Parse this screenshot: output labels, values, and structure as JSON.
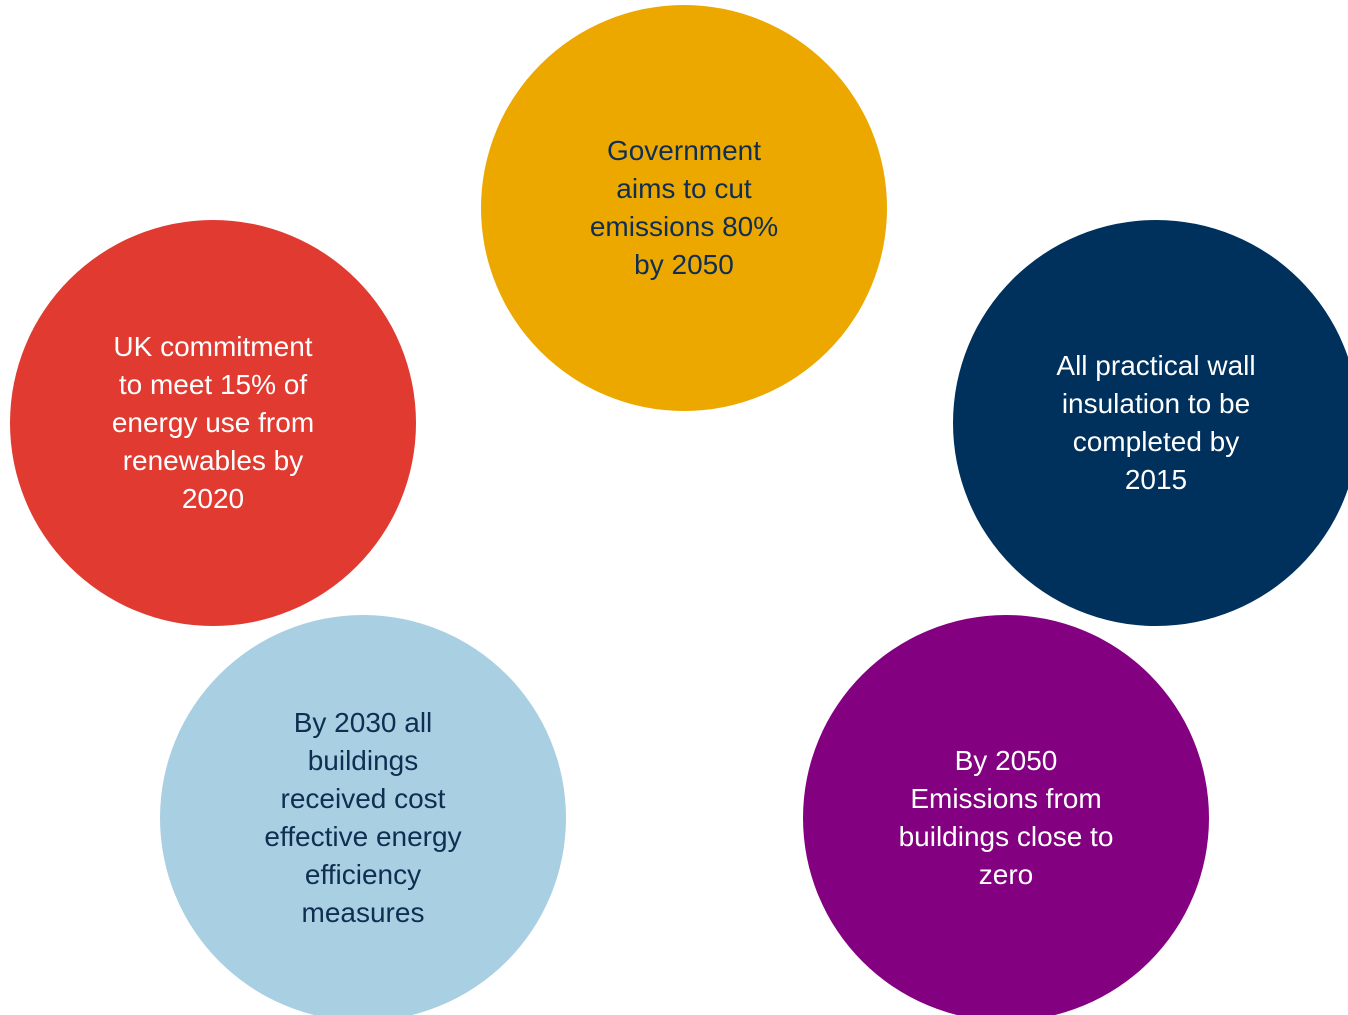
{
  "circles": [
    {
      "id": "gov",
      "text": "Government\naims to cut\nemissions 80%\nby 2050",
      "fill": "#EDA800",
      "text_color": "#0F2E52"
    },
    {
      "id": "uk",
      "text": "UK commitment\nto meet 15% of\nenergy use from\nrenewables by\n2020",
      "fill": "#E03A31",
      "text_color": "#FFFFFF"
    },
    {
      "id": "wall",
      "text": "All practical wall\ninsulation to be\ncompleted by\n2015",
      "fill": "#00305C",
      "text_color": "#FFFFFF"
    },
    {
      "id": "2030",
      "text": "By 2030 all\nbuildings\nreceived cost\neffective energy\nefficiency\nmeasures",
      "fill": "#A9CFE2",
      "text_color": "#0F2E52"
    },
    {
      "id": "2050",
      "text": "By 2050\nEmissions from\nbuildings close to\nzero",
      "fill": "#830080",
      "text_color": "#FFFFFF"
    }
  ]
}
